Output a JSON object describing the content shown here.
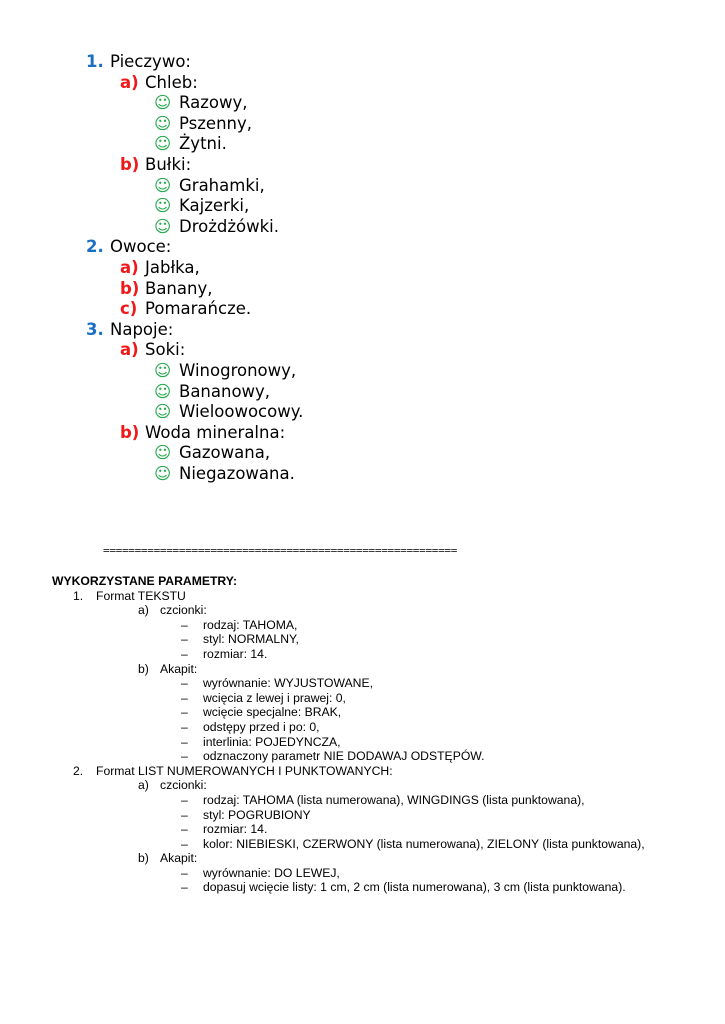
{
  "colors": {
    "level1": "#1a6fc4",
    "level2": "#f01818",
    "bullet": "#22a94a"
  },
  "bullet_icon": "smiley-face-icon",
  "list": [
    {
      "marker": "1.",
      "text": "Pieczywo:",
      "children": [
        {
          "marker": "a)",
          "text": "Chleb:",
          "children": [
            "Razowy,",
            "Pszenny,",
            "Żytni."
          ]
        },
        {
          "marker": "b)",
          "text": "Bułki:",
          "children": [
            "Grahamki,",
            "Kajzerki,",
            "Drożdżówki."
          ]
        }
      ]
    },
    {
      "marker": "2.",
      "text": "Owoce:",
      "children": [
        {
          "marker": "a)",
          "text": "Jabłka,",
          "children": []
        },
        {
          "marker": "b)",
          "text": "Banany,",
          "children": []
        },
        {
          "marker": "c)",
          "text": "Pomarańcze.",
          "children": []
        }
      ]
    },
    {
      "marker": "3.",
      "text": "Napoje:",
      "children": [
        {
          "marker": "a)",
          "text": "Soki:",
          "children": [
            "Winogronowy,",
            "Bananowy,",
            "Wieloowocowy."
          ]
        },
        {
          "marker": "b)",
          "text": "Woda mineralna:",
          "children": [
            "Gazowana,",
            "Niegazowana."
          ]
        }
      ]
    }
  ],
  "separator": "========================================================",
  "params": {
    "heading": "WYKORZYSTANE PARAMETRY:",
    "items": [
      {
        "marker": "1.",
        "text": "Format TEKSTU",
        "children": [
          {
            "marker": "a)",
            "text": "czcionki:",
            "children": [
              "rodzaj: TAHOMA,",
              "styl: NORMALNY,",
              "rozmiar: 14."
            ]
          },
          {
            "marker": "b)",
            "text": "Akapit:",
            "children": [
              "wyrównanie: WYJUSTOWANE,",
              "wcięcia z lewej i prawej: 0,",
              "wcięcie specjalne: BRAK,",
              "odstępy przed i po: 0,",
              "interlinia: POJEDYNCZA,",
              "odznaczony parametr NIE DODAWAJ ODSTĘPÓW."
            ]
          }
        ]
      },
      {
        "marker": "2.",
        "text": "Format LIST NUMEROWANYCH I PUNKTOWANYCH:",
        "children": [
          {
            "marker": "a)",
            "text": "czcionki:",
            "children": [
              "rodzaj: TAHOMA (lista numerowana), WINGDINGS (lista punktowana),",
              "styl: POGRUBIONY",
              "rozmiar: 14.",
              "kolor: NIEBIESKI, CZERWONY (lista numerowana), ZIELONY (lista punktowana),"
            ]
          },
          {
            "marker": "b)",
            "text": "Akapit:",
            "children": [
              "wyrównanie: DO LEWEJ,",
              "dopasuj wcięcie listy: 1 cm, 2 cm (lista numerowana), 3 cm (lista punktowana)."
            ]
          }
        ]
      }
    ]
  }
}
